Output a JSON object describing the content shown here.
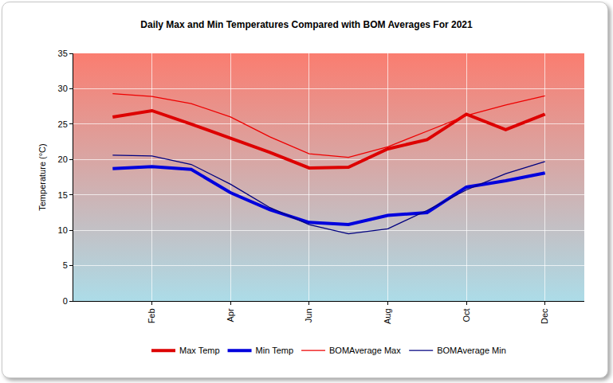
{
  "chart_data": {
    "type": "line",
    "title": "Daily Max and Min Temperatures Compared with BOM Averages For 2021",
    "y_label": "Temperature (°C)",
    "categories": [
      null,
      "Feb",
      null,
      "Apr",
      null,
      "Jun",
      null,
      "Aug",
      null,
      "Oct",
      null,
      "Dec"
    ],
    "series": [
      {
        "name": "Max Temp",
        "color": "#dd0000",
        "values": [
          26.0,
          26.9,
          25.0,
          23.0,
          21.0,
          18.8,
          18.9,
          21.5,
          22.8,
          26.4,
          24.2,
          26.4
        ]
      },
      {
        "name": "Min Temp",
        "color": "#0000dd",
        "values": [
          18.7,
          19.0,
          18.6,
          15.3,
          12.9,
          11.1,
          10.8,
          12.1,
          12.5,
          16.1,
          17.0,
          18.1
        ]
      },
      {
        "name": "BOMAverage Max",
        "color": "#ee0000",
        "values": [
          29.3,
          28.9,
          27.9,
          26.0,
          23.2,
          20.8,
          20.3,
          21.8,
          24.0,
          26.2,
          27.7,
          29.0
        ]
      },
      {
        "name": "BOMAverage Min",
        "color": "#000080",
        "values": [
          20.6,
          20.5,
          19.3,
          16.5,
          13.2,
          10.8,
          9.5,
          10.2,
          12.8,
          15.7,
          18.0,
          19.7
        ]
      }
    ],
    "ylim": [
      0,
      35
    ],
    "yticks": [
      0,
      5,
      10,
      15,
      20,
      25,
      30,
      35
    ],
    "grid": true,
    "legend": "bottom"
  }
}
